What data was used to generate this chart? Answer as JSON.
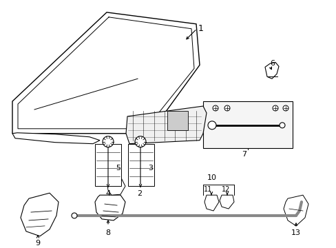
{
  "background_color": "#ffffff",
  "fig_width": 4.89,
  "fig_height": 3.6,
  "dpi": 100,
  "line_color": "#000000",
  "cable_color": "#aaaaaa"
}
